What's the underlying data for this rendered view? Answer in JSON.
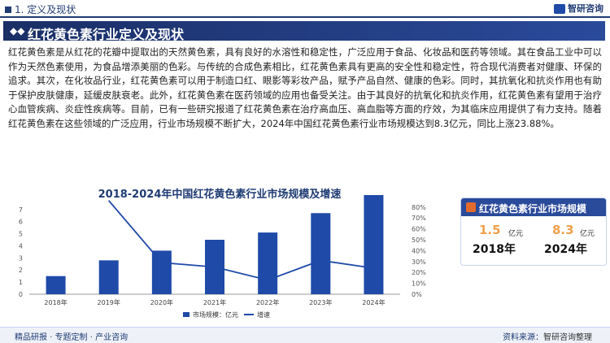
{
  "header": {
    "section": "1. 定义及现状",
    "brand": "智研咨询"
  },
  "title": "红花黄色素行业定义及现状",
  "paragraph": "红花黄色素是从红花的花瓣中提取出的天然黄色素，具有良好的水溶性和稳定性，广泛应用于食品、化妆品和医药等领域。其在食品工业中可以作为天然色素使用，为食品增添美丽的色彩。与传统的合成色素相比，红花黄色素具有更高的安全性和稳定性，符合现代消费者对健康、环保的追求。其次，在化妆品行业，红花黄色素可以用于制造口红、眼影等彩妆产品，赋予产品自然、健康的色彩。同时，其抗氧化和抗炎作用也有助于保护皮肤健康，延缓皮肤衰老。此外，红花黄色素在医药领域的应用也备受关注。由于其良好的抗氧化和抗炎作用，红花黄色素有望用于治疗心血管疾病、炎症性疾病等。目前，已有一些研究报道了红花黄色素在治疗高血压、高血脂等方面的疗效，为其临床应用提供了有力支持。随着红花黄色素在这些领域的广泛应用，行业市场规模不断扩大，2024年中国红花黄色素行业市场规模达到8.3亿元，同比上涨23.88%。",
  "chart_data": {
    "type": "bar",
    "title": "2018-2024年中国红花黄色素行业市场规模及增速",
    "categories": [
      "2018年",
      "2019年",
      "2020年",
      "2021年",
      "2022年",
      "2023年",
      "2024年"
    ],
    "series": [
      {
        "name": "市场规模：亿元",
        "type": "bar",
        "axis": "left",
        "values": [
          1.5,
          2.8,
          3.6,
          4.5,
          5.1,
          6.7,
          8.3
        ]
      },
      {
        "name": "增速",
        "type": "line",
        "axis": "right",
        "values": [
          null,
          86,
          29,
          25,
          13,
          31,
          24
        ]
      }
    ],
    "y_left": {
      "min": 0,
      "max": 9,
      "ticks": [
        "0",
        "1",
        "2",
        "3",
        "4",
        "5",
        "6",
        "7",
        "8",
        "9"
      ]
    },
    "y_right": {
      "min": 0,
      "max": 100,
      "ticks": [
        "0%",
        "10%",
        "20%",
        "30%",
        "40%",
        "50%",
        "60%",
        "70%",
        "80%",
        "90%",
        "100%"
      ]
    },
    "legend_position": "bottom",
    "bar_color": "#1f4aa8",
    "line_color": "#1f4aa8"
  },
  "card": {
    "title": "红花黄色素行业市场规模",
    "left": {
      "value": "1.5",
      "unit": "亿元",
      "year": "2018年"
    },
    "right": {
      "value": "8.3",
      "unit": "亿元",
      "year": "2024年"
    }
  },
  "footer": {
    "left": "精品研报 · 专题定制 · 产业咨询",
    "right_label": "资料来源：",
    "right_source": "智研咨询整理"
  }
}
